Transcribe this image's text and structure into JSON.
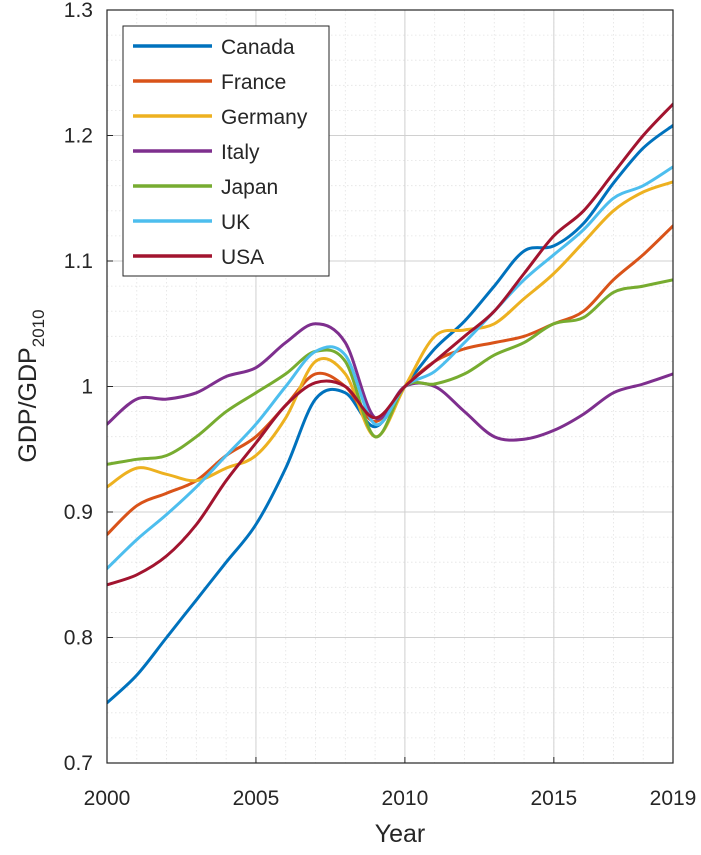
{
  "chart_data": {
    "type": "line",
    "xlabel": "Year",
    "ylabel_main": "GDP/GDP",
    "ylabel_sub": "2010",
    "xlim": [
      2000,
      2019
    ],
    "ylim": [
      0.7,
      1.3
    ],
    "x_ticks": [
      2000,
      2005,
      2010,
      2015,
      2019
    ],
    "x_tick_labels": [
      "2000",
      "2005",
      "2010",
      "2015",
      "2019"
    ],
    "y_ticks": [
      0.7,
      0.8,
      0.9,
      1.0,
      1.1,
      1.2,
      1.3
    ],
    "y_tick_labels": [
      "0.7",
      "0.8",
      "0.9",
      "1",
      "1.1",
      "1.2",
      "1.3"
    ],
    "grid": true,
    "minor_grid": true,
    "legend_position": "top-left",
    "x": [
      2000,
      2001,
      2002,
      2003,
      2004,
      2005,
      2006,
      2007,
      2008,
      2009,
      2010,
      2011,
      2012,
      2013,
      2014,
      2015,
      2016,
      2017,
      2018,
      2019
    ],
    "series": [
      {
        "name": "Canada",
        "color": "#0072BD",
        "values": [
          0.748,
          0.77,
          0.8,
          0.83,
          0.86,
          0.89,
          0.935,
          0.99,
          0.995,
          0.968,
          1.0,
          1.03,
          1.052,
          1.08,
          1.108,
          1.112,
          1.13,
          1.162,
          1.19,
          1.208
        ]
      },
      {
        "name": "France",
        "color": "#D95319",
        "values": [
          0.882,
          0.905,
          0.915,
          0.925,
          0.945,
          0.96,
          0.985,
          1.01,
          1.0,
          0.972,
          1.0,
          1.02,
          1.03,
          1.035,
          1.04,
          1.05,
          1.06,
          1.085,
          1.105,
          1.128
        ]
      },
      {
        "name": "Germany",
        "color": "#EDB120",
        "values": [
          0.92,
          0.935,
          0.93,
          0.925,
          0.935,
          0.945,
          0.975,
          1.02,
          1.01,
          0.96,
          1.0,
          1.04,
          1.045,
          1.05,
          1.07,
          1.09,
          1.115,
          1.14,
          1.155,
          1.163
        ]
      },
      {
        "name": "Italy",
        "color": "#7E2F8E",
        "values": [
          0.97,
          0.99,
          0.99,
          0.995,
          1.008,
          1.015,
          1.035,
          1.05,
          1.035,
          0.975,
          1.0,
          1.0,
          0.98,
          0.96,
          0.958,
          0.965,
          0.978,
          0.995,
          1.002,
          1.01
        ]
      },
      {
        "name": "Japan",
        "color": "#77AC30",
        "values": [
          0.938,
          0.942,
          0.945,
          0.96,
          0.98,
          0.995,
          1.01,
          1.028,
          1.02,
          0.96,
          1.0,
          1.002,
          1.01,
          1.025,
          1.035,
          1.05,
          1.055,
          1.075,
          1.08,
          1.085
        ]
      },
      {
        "name": "UK",
        "color": "#4DBEEE",
        "values": [
          0.855,
          0.878,
          0.898,
          0.92,
          0.945,
          0.97,
          1.0,
          1.028,
          1.025,
          0.97,
          1.0,
          1.012,
          1.035,
          1.06,
          1.085,
          1.105,
          1.125,
          1.15,
          1.16,
          1.175
        ]
      },
      {
        "name": "USA",
        "color": "#A2142F",
        "values": [
          0.842,
          0.85,
          0.865,
          0.89,
          0.925,
          0.955,
          0.985,
          1.003,
          1.0,
          0.975,
          1.0,
          1.02,
          1.04,
          1.06,
          1.09,
          1.12,
          1.14,
          1.17,
          1.2,
          1.225
        ]
      }
    ]
  }
}
